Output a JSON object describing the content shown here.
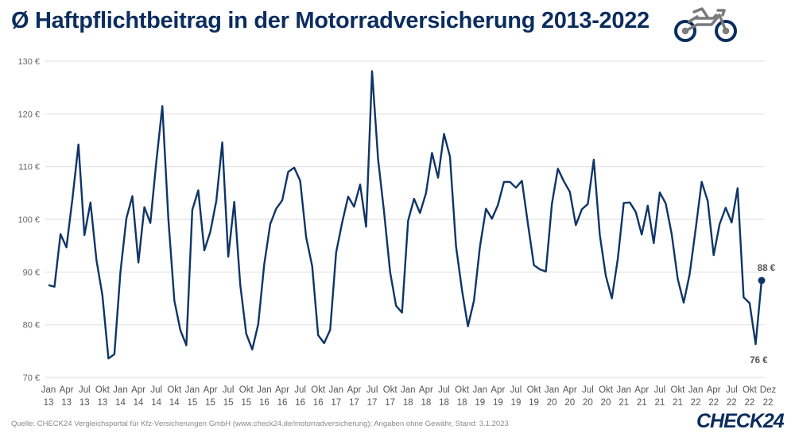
{
  "title": "Ø Haftpflichtbeitrag in der Motorradversicherung 2013-2022",
  "icon": "motorcycle-icon",
  "source": "Quelle: CHECK24 Vergleichsportal für Kfz-Versicherungen GmbH (www.check24.de/motorradversicherung); Angaben ohne Gewähr, Stand: 3.1.2023",
  "logo_text": "CHECK24",
  "colors": {
    "line": "#0f3566",
    "title": "#0b2d5e",
    "grid": "#e3e3e3",
    "icon_body": "#7a7a7a"
  },
  "chart_data": {
    "type": "line",
    "title": "Ø Haftpflichtbeitrag in der Motorradversicherung 2013-2022",
    "xlabel": "",
    "ylabel": "",
    "ylim": [
      70,
      130
    ],
    "yticks": [
      70,
      80,
      90,
      100,
      110,
      120,
      130
    ],
    "ytick_labels": [
      "70 €",
      "80 €",
      "90 €",
      "100 €",
      "110 €",
      "120 €",
      "130 €"
    ],
    "grid": true,
    "legend": "none",
    "x_start": "Jan 2013",
    "x_end": "Dez 2022",
    "xtick_labels": [
      [
        "Jan",
        "13"
      ],
      [
        "Apr",
        "13"
      ],
      [
        "Jul",
        "13"
      ],
      [
        "Okt",
        "13"
      ],
      [
        "Jan",
        "14"
      ],
      [
        "Apr",
        "14"
      ],
      [
        "Jul",
        "14"
      ],
      [
        "Okt",
        "14"
      ],
      [
        "Jan",
        "15"
      ],
      [
        "Apr",
        "15"
      ],
      [
        "Jul",
        "15"
      ],
      [
        "Okt",
        "15"
      ],
      [
        "Jan",
        "16"
      ],
      [
        "Apr",
        "16"
      ],
      [
        "Jul",
        "16"
      ],
      [
        "Okt",
        "16"
      ],
      [
        "Jan",
        "17"
      ],
      [
        "Apr",
        "17"
      ],
      [
        "Jul",
        "17"
      ],
      [
        "Okt",
        "17"
      ],
      [
        "Jan",
        "18"
      ],
      [
        "Apr",
        "18"
      ],
      [
        "Jul",
        "18"
      ],
      [
        "Okt",
        "18"
      ],
      [
        "Jan",
        "19"
      ],
      [
        "Apr",
        "19"
      ],
      [
        "Jul",
        "19"
      ],
      [
        "Okt",
        "19"
      ],
      [
        "Jan",
        "20"
      ],
      [
        "Apr",
        "20"
      ],
      [
        "Jul",
        "20"
      ],
      [
        "Okt",
        "20"
      ],
      [
        "Jan",
        "21"
      ],
      [
        "Apr",
        "21"
      ],
      [
        "Jul",
        "21"
      ],
      [
        "Okt",
        "21"
      ],
      [
        "Jan",
        "22"
      ],
      [
        "Apr",
        "22"
      ],
      [
        "Jul",
        "22"
      ],
      [
        "Okt",
        "22"
      ],
      [
        "Dez",
        "22"
      ]
    ],
    "series": [
      {
        "values": [
          87.5,
          87.2,
          97.2,
          94.7,
          104,
          114.2,
          97,
          103.2,
          92.3,
          85.6,
          73.6,
          74.4,
          90,
          100.2,
          104.4,
          91.8,
          102.3,
          99.3,
          111,
          121.5,
          100,
          84.6,
          79,
          76.1,
          101.8,
          105.5,
          94.1,
          97.6,
          103.5,
          114.6,
          92.9,
          103.3,
          87.6,
          78.3,
          75.3,
          80.1,
          91.5,
          99.1,
          102,
          103.6,
          109,
          109.8,
          107.3,
          96.6,
          91.1,
          78,
          76.5,
          79,
          93.7,
          99.4,
          104.3,
          102.4,
          106.6,
          98.6,
          128.1,
          111.4,
          101.4,
          90,
          83.6,
          82.3,
          99.7,
          103.9,
          101.2,
          105,
          112.6,
          107.9,
          116.2,
          111.9,
          94.9,
          86.6,
          79.7,
          84.6,
          94.8,
          102,
          100.1,
          102.7,
          107.1,
          107.1,
          106,
          107.3,
          99.2,
          91.3,
          90.5,
          90.1,
          102.9,
          109.6,
          107.2,
          105.2,
          98.9,
          101.9,
          102.9,
          111.3,
          97,
          89.3,
          85,
          92.5,
          103.1,
          103.2,
          101.4,
          97.1,
          102.6,
          95.5,
          105.1,
          103,
          97.2,
          88.7,
          84.2,
          89.6,
          98.2,
          107.1,
          103.5,
          93.2,
          99.1,
          102.2,
          99.4,
          105.9,
          85.2,
          84.1,
          76.3,
          88.4
        ]
      }
    ],
    "annotations": [
      {
        "label": "88 €",
        "month": "Dez 2022",
        "value": 88.4,
        "position": "above"
      },
      {
        "label": "76 €",
        "month": "Nov 2022",
        "value": 76.3,
        "position": "below"
      }
    ]
  }
}
